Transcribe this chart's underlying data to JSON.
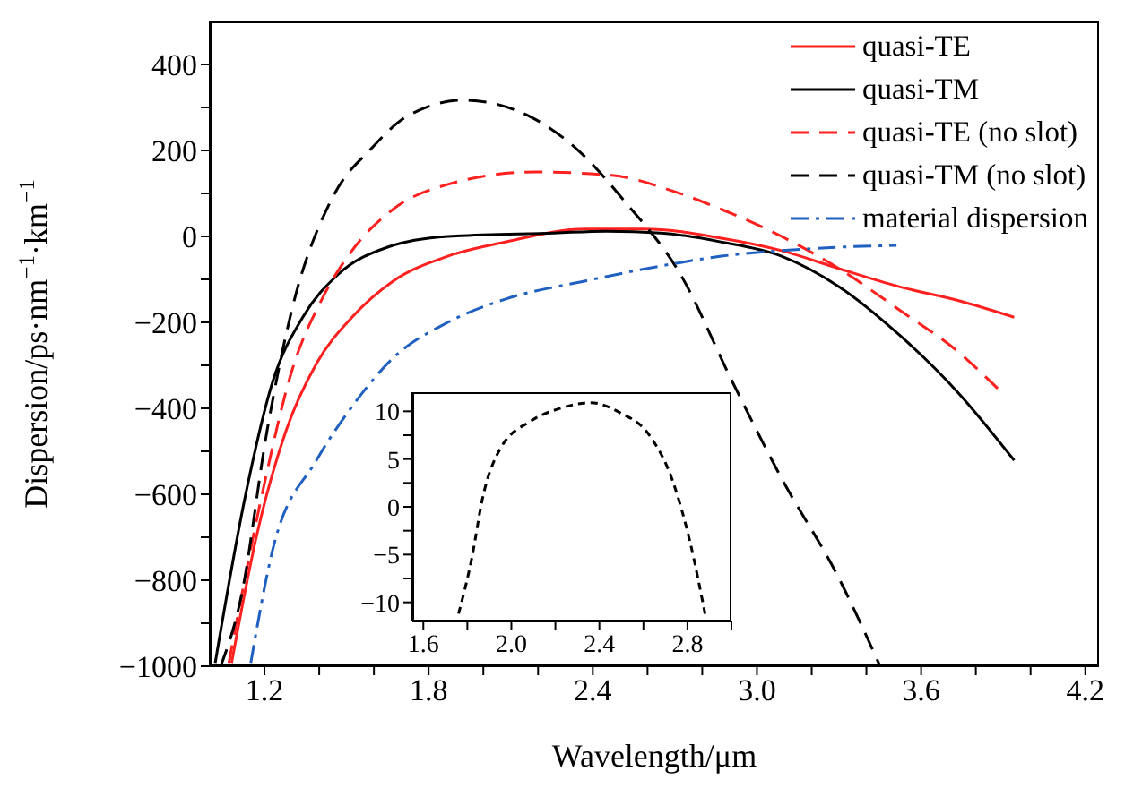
{
  "chart_data": [
    {
      "type": "line",
      "xlabel": "Wavelength/μm",
      "ylabel": "Dispersion/ps·nm$^{−1}$·km$^{−1}$",
      "xlim": [
        1.0,
        4.25
      ],
      "ylim": [
        -1000,
        500
      ],
      "xticks": [
        1.2,
        {
          "value": 1.4,
          "label": null
        },
        {
          "value": 1.6,
          "label": null
        },
        1.8,
        {
          "value": 2.0,
          "label": null
        },
        {
          "value": 2.2,
          "label": null
        },
        2.4,
        {
          "value": 2.6,
          "label": null
        },
        {
          "value": 2.8,
          "label": null
        },
        {
          "value": 3.0,
          "label": "3.0"
        },
        {
          "value": 3.2,
          "label": null
        },
        {
          "value": 3.4,
          "label": null
        },
        3.6,
        {
          "value": 3.8,
          "label": null
        },
        {
          "value": 4.0,
          "label": null
        },
        4.2
      ],
      "yticks": [
        {
          "value": -1000,
          "label": "−1000"
        },
        {
          "value": -900,
          "label": null
        },
        {
          "value": -800,
          "label": "−800"
        },
        {
          "value": -700,
          "label": null
        },
        {
          "value": -600,
          "label": "−600"
        },
        {
          "value": -500,
          "label": null
        },
        {
          "value": -400,
          "label": "−400"
        },
        {
          "value": -300,
          "label": null
        },
        {
          "value": -200,
          "label": "−200"
        },
        {
          "value": -100,
          "label": null
        },
        0,
        {
          "value": 100,
          "label": null
        },
        200,
        {
          "value": 300,
          "label": null
        },
        400
      ],
      "grid": false,
      "legend": "top right",
      "marker": "none",
      "series": [
        {
          "name": "quasi-TE",
          "color": "#ff2020",
          "line_style": "solid",
          "x": [
            1.08,
            1.17,
            1.28,
            1.39,
            1.52,
            1.67,
            1.87,
            2.08,
            2.37,
            2.59,
            2.87,
            3.09,
            3.3,
            3.52,
            3.74,
            3.94
          ],
          "values": [
            -992,
            -700,
            -450,
            -296,
            -188,
            -104,
            -46,
            -13,
            17,
            17,
            -4,
            -33,
            -75,
            -117,
            -150,
            -188
          ]
        },
        {
          "name": "quasi-TM",
          "color": "#000000",
          "line_style": "solid",
          "x": [
            1.02,
            1.13,
            1.23,
            1.34,
            1.47,
            1.65,
            1.87,
            2.26,
            2.45,
            2.65,
            2.87,
            3.09,
            3.3,
            3.52,
            3.74,
            3.94
          ],
          "values": [
            -992,
            -604,
            -338,
            -188,
            -88,
            -25,
            0,
            8,
            12,
            8,
            -13,
            -46,
            -117,
            -229,
            -367,
            -521
          ]
        },
        {
          "name": "quasi-TE (no slot)",
          "color": "#ff2020",
          "line_style": "dashed",
          "x": [
            1.07,
            1.19,
            1.3,
            1.41,
            1.52,
            1.67,
            1.87,
            2.19,
            2.47,
            2.7,
            2.87,
            3.09,
            3.3,
            3.52,
            3.74,
            3.88
          ],
          "values": [
            -992,
            -604,
            -313,
            -146,
            -33,
            63,
            121,
            150,
            142,
            104,
            63,
            0,
            -75,
            -171,
            -271,
            -354
          ]
        },
        {
          "name": "quasi-TM (no slot)",
          "color": "#000000",
          "line_style": "dashed",
          "x": [
            1.04,
            1.115,
            1.21,
            1.3,
            1.45,
            1.59,
            1.72,
            1.93,
            2.17,
            2.34,
            2.52,
            2.72,
            2.91,
            3.09,
            3.3,
            3.45
          ],
          "values": [
            -1000,
            -838,
            -450,
            -171,
            92,
            204,
            279,
            317,
            279,
            204,
            79,
            -88,
            -338,
            -563,
            -796,
            -1000
          ]
        },
        {
          "name": "material dispersion",
          "color": "#2060c0",
          "line_style": "dashdot",
          "x": [
            1.15,
            1.23,
            1.39,
            1.52,
            1.67,
            1.87,
            2.08,
            2.37,
            2.7,
            2.87,
            3.09,
            3.3,
            3.51
          ],
          "values": [
            -992,
            -729,
            -521,
            -396,
            -283,
            -200,
            -146,
            -104,
            -63,
            -46,
            -33,
            -25,
            -21
          ]
        }
      ]
    },
    {
      "type": "line",
      "xlim": [
        1.55,
        3.0
      ],
      "ylim": [
        -12,
        12
      ],
      "xticks": [
        1.6,
        {
          "value": 1.8,
          "label": null
        },
        {
          "value": 2.0,
          "label": "2.0"
        },
        {
          "value": 2.2,
          "label": null
        },
        2.4,
        {
          "value": 2.6,
          "label": null
        },
        2.8,
        {
          "value": 3.0,
          "label": null
        }
      ],
      "yticks": [
        {
          "value": -10,
          "label": "−10"
        },
        {
          "value": -7.5,
          "label": null
        },
        {
          "value": -5,
          "label": "−5"
        },
        {
          "value": -2.5,
          "label": null
        },
        0,
        {
          "value": 2.5,
          "label": null
        },
        5,
        {
          "value": 7.5,
          "label": null
        },
        10
      ],
      "grid": false,
      "marker": "none",
      "series": [
        {
          "color": "#000000",
          "line_style": "dotted",
          "x": [
            1.76,
            1.82,
            1.87,
            1.95,
            2.09,
            2.22,
            2.36,
            2.49,
            2.63,
            2.73,
            2.81,
            2.88
          ],
          "values": [
            -11.2,
            -5.4,
            1,
            6.1,
            9,
            10.3,
            10.9,
            9.9,
            7.4,
            2.9,
            -3.5,
            -11.2
          ]
        }
      ]
    }
  ]
}
